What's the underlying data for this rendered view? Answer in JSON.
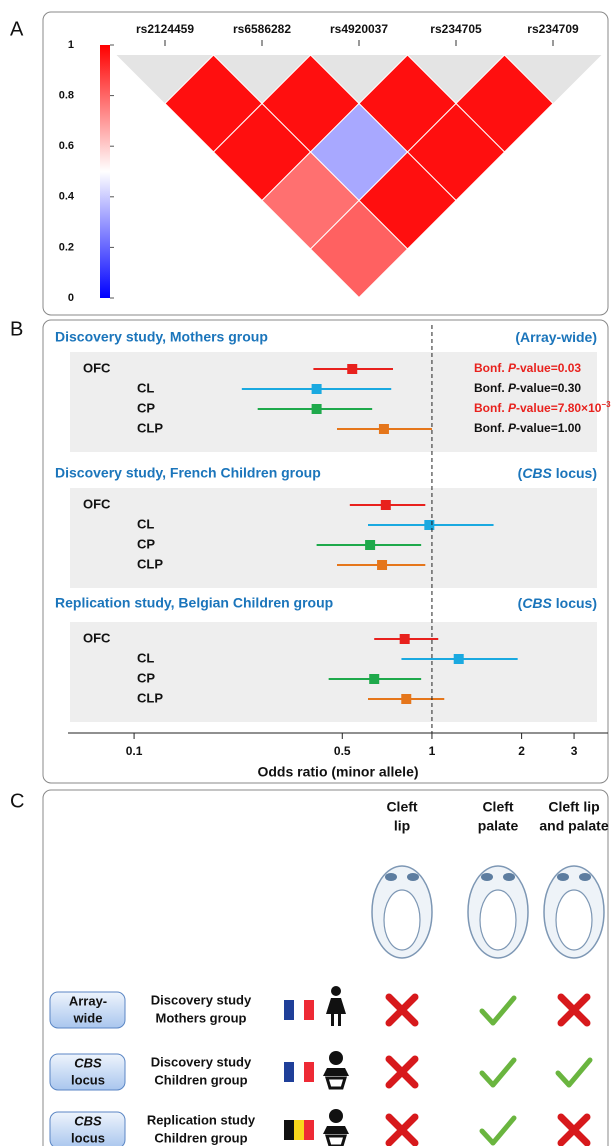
{
  "panel_labels": [
    "A",
    "B",
    "C"
  ],
  "chart_data": [
    {
      "type": "heatmap",
      "snps": [
        "rs2124459",
        "rs6586282",
        "rs4920037",
        "rs234705",
        "rs234709"
      ],
      "values": [
        [
          0.97,
          0.97,
          0.97,
          0.97
        ],
        [
          0.97,
          0.33,
          0.97
        ],
        [
          0.78,
          0.97
        ],
        [
          0.81
        ]
      ],
      "colorbar": {
        "lim": [
          0,
          1
        ],
        "ticks": [
          0,
          0.2,
          0.4,
          0.6,
          0.8,
          1
        ],
        "colors": [
          "#0000ff",
          "#ffffff",
          "#ff0000"
        ]
      },
      "missing_color": "#e4e4e4"
    },
    {
      "type": "forest",
      "xlabel": "Odds ratio (minor allele)",
      "log": true,
      "xlim": [
        0.06,
        3.9
      ],
      "xticks": [
        0.1,
        0.5,
        1,
        2,
        3
      ],
      "refline": 1,
      "series": [
        {
          "name": "OFC",
          "color": "#e8211d"
        },
        {
          "name": "CL",
          "color": "#1aa9e0"
        },
        {
          "name": "CP",
          "color": "#1ea94b"
        },
        {
          "name": "CLP",
          "color": "#e5761b"
        }
      ],
      "groups": [
        {
          "title": "Discovery study, Mothers group",
          "scope": [
            {
              "text": "(Array-wide)"
            }
          ],
          "estimates": [
            0.54,
            0.41,
            0.41,
            0.69
          ],
          "lower": [
            0.4,
            0.23,
            0.26,
            0.48
          ],
          "upper": [
            0.74,
            0.73,
            0.63,
            1.0
          ],
          "annotations": [
            {
              "color": "#e8211d",
              "parts": [
                {
                  "text": "Bonf. "
                },
                {
                  "text": "P",
                  "italic": true
                },
                {
                  "text": "-value=0.03"
                }
              ]
            },
            {
              "color": "#111111",
              "parts": [
                {
                  "text": "Bonf. "
                },
                {
                  "text": "P",
                  "italic": true
                },
                {
                  "text": "-value=0.30"
                }
              ]
            },
            {
              "color": "#e8211d",
              "parts": [
                {
                  "text": "Bonf. "
                },
                {
                  "text": "P",
                  "italic": true
                },
                {
                  "text": "-value=7.80×10"
                },
                {
                  "text": "−3",
                  "superscript": true
                }
              ]
            },
            {
              "color": "#111111",
              "parts": [
                {
                  "text": "Bonf. "
                },
                {
                  "text": "P",
                  "italic": true
                },
                {
                  "text": "-value=1.00"
                }
              ]
            }
          ]
        },
        {
          "title": "Discovery study, French Children group",
          "scope": [
            {
              "text": "("
            },
            {
              "text": "CBS",
              "italic": true
            },
            {
              "text": " locus)"
            }
          ],
          "estimates": [
            0.7,
            0.98,
            0.62,
            0.68
          ],
          "lower": [
            0.53,
            0.61,
            0.41,
            0.48
          ],
          "upper": [
            0.95,
            1.61,
            0.92,
            0.95
          ]
        },
        {
          "title": "Replication study, Belgian Children group",
          "scope": [
            {
              "text": "("
            },
            {
              "text": "CBS",
              "italic": true
            },
            {
              "text": " locus)"
            }
          ],
          "estimates": [
            0.81,
            1.23,
            0.64,
            0.82
          ],
          "lower": [
            0.64,
            0.79,
            0.45,
            0.61
          ],
          "upper": [
            1.05,
            1.94,
            0.92,
            1.1
          ]
        }
      ]
    }
  ],
  "table": {
    "columns": [
      [
        "Cleft",
        "lip"
      ],
      [
        "Cleft",
        "palate"
      ],
      [
        "Cleft lip",
        "and palate"
      ]
    ],
    "rows": [
      {
        "badge": [
          {
            "text": "Array-"
          },
          {
            "text": "wide"
          }
        ],
        "study": [
          "Discovery study",
          "Mothers group"
        ],
        "associations": [
          false,
          true,
          false
        ]
      },
      {
        "badge": [
          {
            "text": "CBS",
            "italic": true
          },
          {
            "text": "locus"
          }
        ],
        "study": [
          "Discovery study",
          "Children group"
        ],
        "associations": [
          false,
          true,
          true
        ]
      },
      {
        "badge": [
          {
            "text": "CBS",
            "italic": true
          },
          {
            "text": "locus"
          }
        ],
        "study": [
          "Replication study",
          "Children group"
        ],
        "associations": [
          false,
          true,
          false
        ]
      }
    ]
  }
}
